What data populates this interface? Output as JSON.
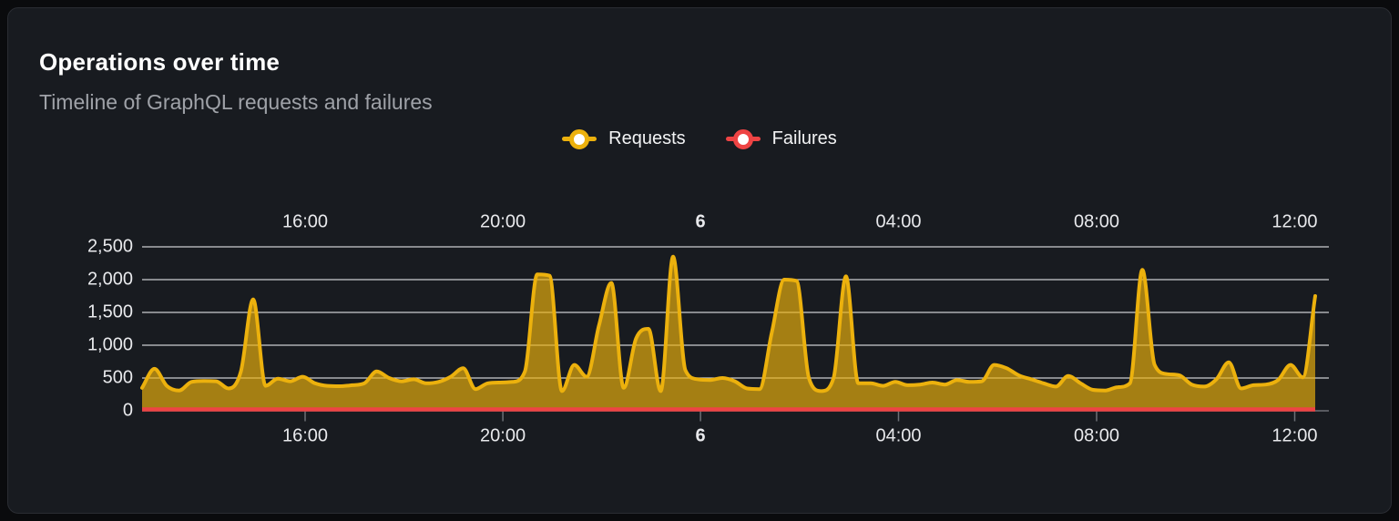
{
  "header": {
    "title": "Operations over time",
    "subtitle": "Timeline of GraphQL requests and failures"
  },
  "legend": {
    "items": [
      {
        "label": "Requests",
        "color": "#ecb10d"
      },
      {
        "label": "Failures",
        "color": "#ee4444"
      }
    ]
  },
  "colors": {
    "page_background": "#0a0b0d",
    "panel_background": "#181b20",
    "panel_border": "#2a2d33",
    "gridline": "#dfe0e4",
    "axis_line": "#6d7076",
    "axis_text": "#e8e9ec",
    "title_text": "#ffffff",
    "subtitle_text": "#9fa2a8",
    "requests_line": "#ecb10d",
    "requests_fill": "rgba(236,177,13,0.67)",
    "failures_line": "#ee4444"
  },
  "chart_data": {
    "type": "area",
    "title": "Operations over time",
    "subtitle": "Timeline of GraphQL requests and failures",
    "legend_position": "top-center",
    "grid": true,
    "x_axis": {
      "shown_on": [
        "top",
        "bottom"
      ],
      "ticks": [
        {
          "label": "16:00",
          "pos": 0.139
        },
        {
          "label": "20:00",
          "pos": 0.3075
        },
        {
          "label": "6",
          "pos": 0.476,
          "bold": true
        },
        {
          "label": "04:00",
          "pos": 0.6448
        },
        {
          "label": "08:00",
          "pos": 0.8137
        },
        {
          "label": "12:00",
          "pos": 0.9825
        }
      ],
      "note": "bold 6 marks midnight starting day 6; samples every 15 minutes from ~12:45 day 5 to ~12:30 day 6"
    },
    "y_axis": {
      "range": [
        0,
        2500
      ],
      "ticks": [
        {
          "label": "0",
          "value": 0
        },
        {
          "label": "500",
          "value": 500
        },
        {
          "label": "1,000",
          "value": 1000
        },
        {
          "label": "1,500",
          "value": 1500
        },
        {
          "label": "2,000",
          "value": 2000
        },
        {
          "label": "2,500",
          "value": 2500
        }
      ]
    },
    "series": [
      {
        "name": "Requests",
        "type": "areaspline",
        "line_color": "#ecb10d",
        "fill_color": "rgba(236,177,13,0.67)",
        "values": [
          350,
          640,
          380,
          310,
          440,
          455,
          450,
          340,
          600,
          1700,
          380,
          490,
          450,
          520,
          420,
          380,
          375,
          390,
          420,
          600,
          500,
          450,
          480,
          420,
          440,
          520,
          650,
          330,
          420,
          430,
          440,
          600,
          2080,
          2060,
          300,
          700,
          520,
          1300,
          1950,
          350,
          1100,
          1250,
          300,
          2350,
          620,
          480,
          470,
          500,
          450,
          340,
          330,
          1200,
          2000,
          1980,
          500,
          300,
          500,
          2050,
          420,
          420,
          380,
          440,
          390,
          400,
          430,
          400,
          470,
          440,
          450,
          700,
          650,
          540,
          480,
          420,
          370,
          530,
          420,
          320,
          310,
          360,
          420,
          2150,
          700,
          560,
          540,
          400,
          370,
          480,
          740,
          340,
          390,
          400,
          470,
          700,
          510,
          1750
        ]
      },
      {
        "name": "Failures",
        "type": "line",
        "line_color": "#ee4444",
        "constant_value": 0
      }
    ]
  }
}
